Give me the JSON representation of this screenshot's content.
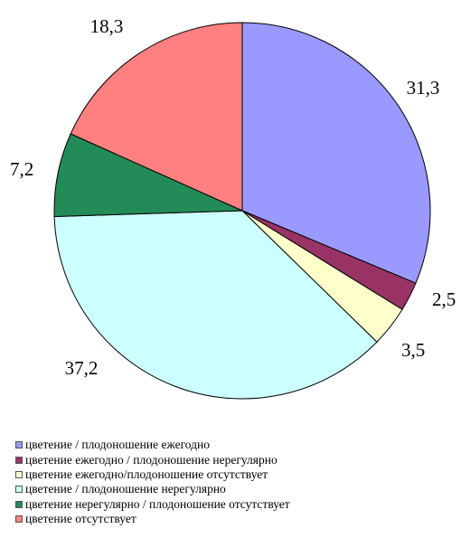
{
  "chart_data": {
    "type": "pie",
    "title": "",
    "start_angle_deg": 0,
    "direction": "clockwise",
    "slices": [
      {
        "label": "цветение / плодоношение ежегодно",
        "value": 31.3,
        "value_label": "31,3",
        "color": "#9999ff"
      },
      {
        "label": "цветение ежегодно / плодоношение нерегулярно",
        "value": 2.5,
        "value_label": "2,5",
        "color": "#993366"
      },
      {
        "label": "цветение ежегодно/плодоношение отсутствует",
        "value": 3.5,
        "value_label": "3,5",
        "color": "#ffffcc"
      },
      {
        "label": "цветение / плодоношение нерегулярно",
        "value": 37.2,
        "value_label": "37,2",
        "color": "#ccffff"
      },
      {
        "label": "цветение нерегулярно / плодоношение отсутствует",
        "value": 7.2,
        "value_label": "7,2",
        "color": "#238b57"
      },
      {
        "label": "цветение отсутствует",
        "value": 18.3,
        "value_label": "18,3",
        "color": "#ff8080"
      }
    ],
    "legend_position": "bottom"
  }
}
